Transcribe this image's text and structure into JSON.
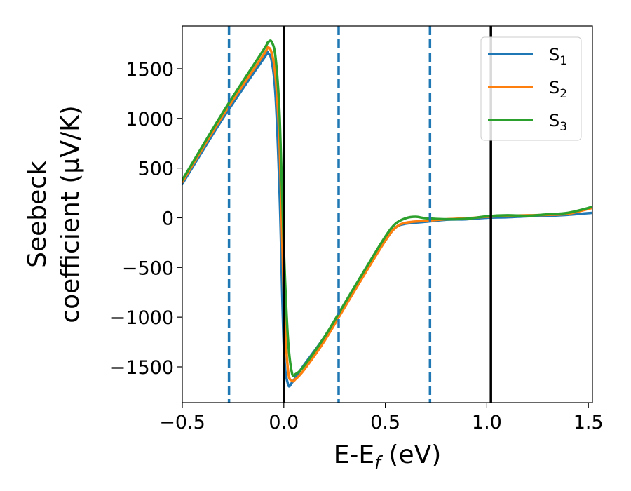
{
  "chart_data": {
    "type": "line",
    "xlabel": {
      "main": "E-E",
      "sub": "f",
      "unit": " (eV)"
    },
    "ylabel": {
      "line1": "Seebeck",
      "line2": "coefficient  (μV/K)"
    },
    "xlim": [
      -0.5,
      1.52
    ],
    "ylim": [
      -1860,
      1930
    ],
    "x_ticks": [
      -0.5,
      0.0,
      0.5,
      1.0,
      1.5
    ],
    "x_tick_labels": [
      "−0.5",
      "0.0",
      "0.5",
      "1.0",
      "1.5"
    ],
    "y_ticks": [
      -1500,
      -1000,
      -500,
      0,
      500,
      1000,
      1500
    ],
    "y_tick_labels": [
      "−1500",
      "−1000",
      "−500",
      "0",
      "500",
      "1000",
      "1500"
    ],
    "grid": false,
    "legend_position": "top-right",
    "vlines_dashed": {
      "x": [
        -0.27,
        0.27,
        0.72
      ],
      "color": "#1f77b4"
    },
    "vlines_solid": {
      "x": [
        0.0,
        1.02
      ],
      "color": "#000000"
    },
    "series": [
      {
        "name": "S",
        "sub": "1",
        "color": "#1f77b4",
        "x": [
          -0.5,
          -0.3,
          -0.1,
          -0.08,
          -0.06,
          -0.04,
          -0.02,
          0.0,
          0.02,
          0.04,
          0.06,
          0.1,
          0.2,
          0.3,
          0.4,
          0.5,
          0.55,
          0.6,
          0.7,
          0.8,
          0.9,
          1.0,
          1.1,
          1.2,
          1.3,
          1.4,
          1.52
        ],
        "y": [
          340,
          1000,
          1600,
          1650,
          1580,
          1200,
          200,
          -1300,
          -1670,
          -1660,
          -1600,
          -1480,
          -1200,
          -880,
          -550,
          -230,
          -100,
          -60,
          -40,
          -20,
          -15,
          0,
          5,
          15,
          20,
          30,
          50
        ]
      },
      {
        "name": "S",
        "sub": "2",
        "color": "#ff7f0e",
        "x": [
          -0.5,
          -0.3,
          -0.1,
          -0.08,
          -0.06,
          -0.04,
          -0.02,
          0.0,
          0.02,
          0.04,
          0.06,
          0.1,
          0.2,
          0.3,
          0.4,
          0.5,
          0.55,
          0.6,
          0.7,
          0.8,
          0.9,
          1.0,
          1.1,
          1.2,
          1.3,
          1.4,
          1.52
        ],
        "y": [
          360,
          1030,
          1640,
          1710,
          1660,
          1400,
          700,
          -800,
          -1520,
          -1640,
          -1620,
          -1530,
          -1240,
          -900,
          -560,
          -230,
          -100,
          -50,
          -30,
          -15,
          -5,
          10,
          20,
          25,
          30,
          40,
          100
        ]
      },
      {
        "name": "S",
        "sub": "3",
        "color": "#2ca02c",
        "x": [
          -0.5,
          -0.3,
          -0.1,
          -0.08,
          -0.06,
          -0.04,
          -0.02,
          0.0,
          0.02,
          0.04,
          0.06,
          0.1,
          0.2,
          0.3,
          0.4,
          0.5,
          0.55,
          0.6,
          0.65,
          0.7,
          0.8,
          0.9,
          1.0,
          1.1,
          1.2,
          1.3,
          1.4,
          1.52
        ],
        "y": [
          380,
          1060,
          1690,
          1760,
          1770,
          1600,
          1000,
          -300,
          -1200,
          -1560,
          -1570,
          -1490,
          -1200,
          -860,
          -520,
          -190,
          -60,
          -5,
          10,
          -5,
          -15,
          -10,
          15,
          25,
          20,
          35,
          50,
          110
        ]
      }
    ]
  }
}
